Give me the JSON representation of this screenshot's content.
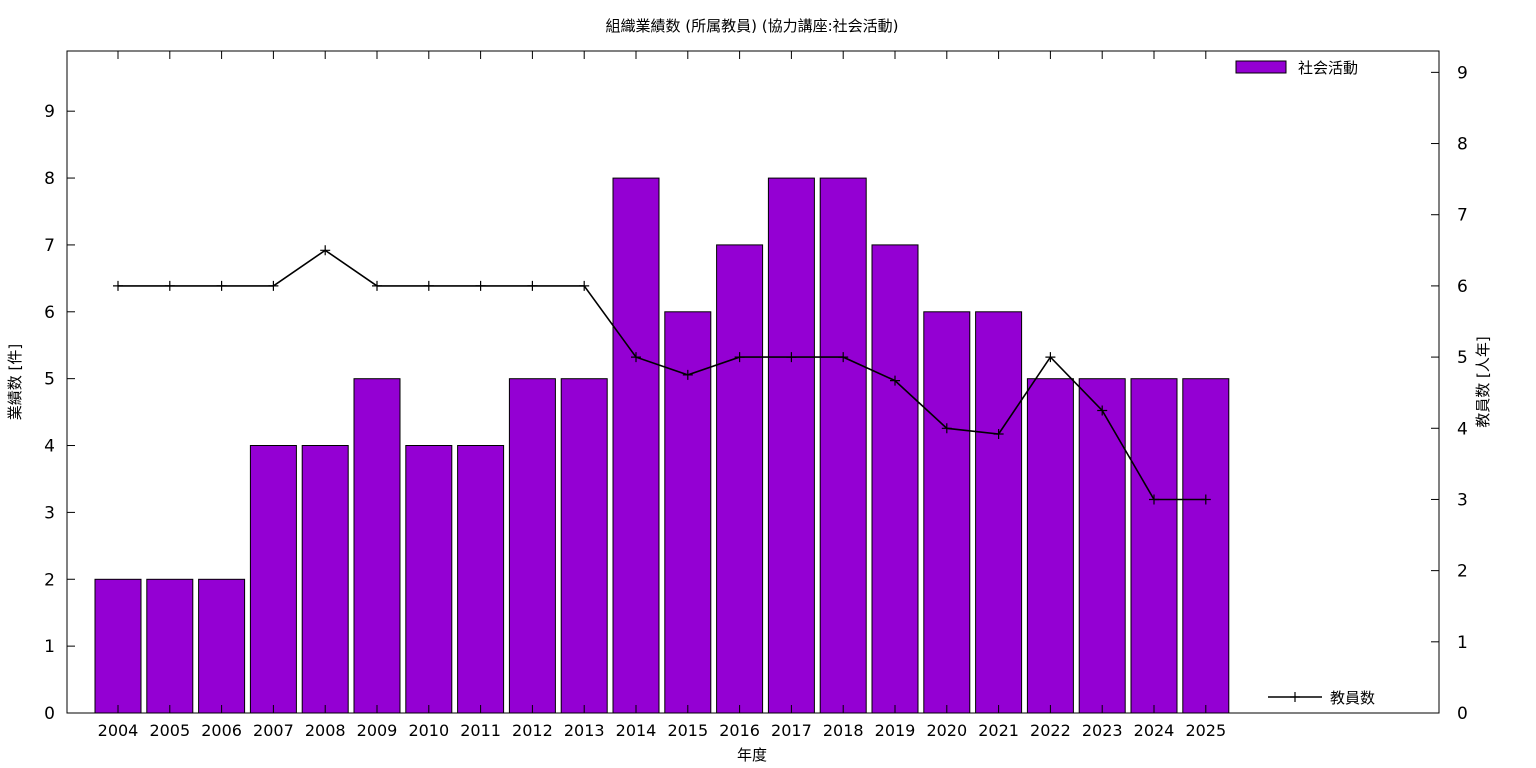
{
  "chart_data": {
    "type": "bar",
    "title": "組織業績数 (所属教員) (協力講座:社会活動)",
    "xlabel": "年度",
    "ylabel": "業績数 [件]",
    "y2label": "教員数 [人年]",
    "categories": [
      "2004",
      "2005",
      "2006",
      "2007",
      "2008",
      "2009",
      "2010",
      "2011",
      "2012",
      "2013",
      "2014",
      "2015",
      "2016",
      "2017",
      "2018",
      "2019",
      "2020",
      "2021",
      "2022",
      "2023",
      "2024",
      "2025"
    ],
    "series": [
      {
        "name": "社会活動",
        "type": "bar",
        "axis": "left",
        "color": "#9400d3",
        "values": [
          2,
          2,
          2,
          4,
          4,
          5,
          4,
          4,
          5,
          5,
          8,
          6,
          7,
          8,
          8,
          7,
          6,
          6,
          5,
          5,
          5,
          5
        ]
      },
      {
        "name": "教員数",
        "type": "line",
        "axis": "right",
        "color": "#000000",
        "values": [
          6,
          6,
          6,
          6,
          6.5,
          6,
          6,
          6,
          6,
          6,
          5,
          4.75,
          5,
          5,
          5,
          4.67,
          4,
          3.92,
          5,
          4.25,
          3,
          3
        ]
      }
    ],
    "ylim": [
      0,
      9.9
    ],
    "y2lim": [
      0,
      9.3
    ],
    "yticks": [
      0,
      1,
      2,
      3,
      4,
      5,
      6,
      7,
      8,
      9
    ],
    "y2ticks": [
      0,
      1,
      2,
      3,
      4,
      5,
      6,
      7,
      8,
      9
    ],
    "legend": "top-right (bars), bottom-right (line)",
    "grid": false
  }
}
